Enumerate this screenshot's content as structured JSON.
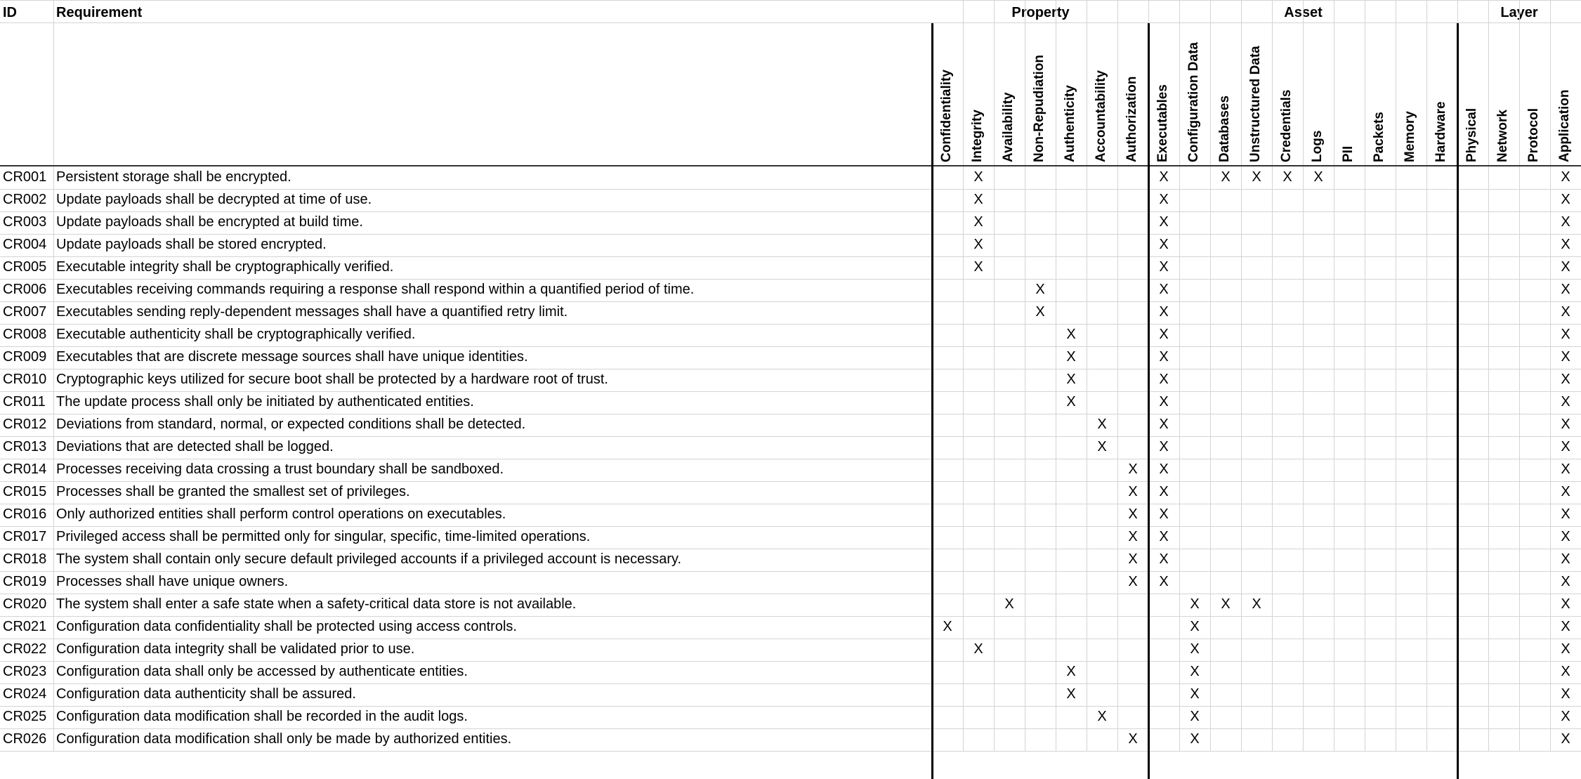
{
  "headers": {
    "id": "ID",
    "requirement": "Requirement"
  },
  "groups": [
    {
      "key": "property",
      "label": "Property",
      "columns": [
        "Confidentiality",
        "Integrity",
        "Availability",
        "Non-Repudiation",
        "Authenticity",
        "Accountability",
        "Authorization"
      ]
    },
    {
      "key": "asset",
      "label": "Asset",
      "columns": [
        "Executables",
        "Configuration Data",
        "Databases",
        "Unstructured Data",
        "Credentials",
        "Logs",
        "PII",
        "Packets",
        "Memory",
        "Hardware"
      ]
    },
    {
      "key": "layer",
      "label": "Layer",
      "columns": [
        "Physical",
        "Network",
        "Protocol",
        "Application"
      ]
    }
  ],
  "mark_symbol": "X",
  "rows": [
    {
      "id": "CR001",
      "text": "Persistent storage shall be encrypted.",
      "marks": [
        "Integrity",
        "Executables",
        "Databases",
        "Unstructured Data",
        "Credentials",
        "Logs",
        "Application"
      ]
    },
    {
      "id": "CR002",
      "text": "Update payloads shall be decrypted at time of use.",
      "marks": [
        "Integrity",
        "Executables",
        "Application"
      ]
    },
    {
      "id": "CR003",
      "text": "Update payloads shall be encrypted at build time.",
      "marks": [
        "Integrity",
        "Executables",
        "Application"
      ]
    },
    {
      "id": "CR004",
      "text": "Update payloads shall be stored encrypted.",
      "marks": [
        "Integrity",
        "Executables",
        "Application"
      ]
    },
    {
      "id": "CR005",
      "text": "Executable integrity shall be cryptographically verified.",
      "marks": [
        "Integrity",
        "Executables",
        "Application"
      ]
    },
    {
      "id": "CR006",
      "text": "Executables receiving commands requiring a response shall respond within a quantified period of time.",
      "marks": [
        "Non-Repudiation",
        "Executables",
        "Application"
      ]
    },
    {
      "id": "CR007",
      "text": "Executables sending reply-dependent messages shall have a quantified retry limit.",
      "marks": [
        "Non-Repudiation",
        "Executables",
        "Application"
      ]
    },
    {
      "id": "CR008",
      "text": "Executable authenticity shall be cryptographically verified.",
      "marks": [
        "Authenticity",
        "Executables",
        "Application"
      ]
    },
    {
      "id": "CR009",
      "text": "Executables that are discrete message sources shall have unique identities.",
      "marks": [
        "Authenticity",
        "Executables",
        "Application"
      ]
    },
    {
      "id": "CR010",
      "text": "Cryptographic keys utilized for secure boot shall be protected by a hardware root of trust.",
      "marks": [
        "Authenticity",
        "Executables",
        "Application"
      ]
    },
    {
      "id": "CR011",
      "text": "The update process shall only be initiated by authenticated entities.",
      "marks": [
        "Authenticity",
        "Executables",
        "Application"
      ]
    },
    {
      "id": "CR012",
      "text": "Deviations from standard, normal, or expected conditions shall be detected.",
      "marks": [
        "Accountability",
        "Executables",
        "Application"
      ]
    },
    {
      "id": "CR013",
      "text": "Deviations that are detected shall be logged.",
      "marks": [
        "Accountability",
        "Executables",
        "Application"
      ]
    },
    {
      "id": "CR014",
      "text": "Processes receiving data crossing a trust boundary shall be sandboxed.",
      "marks": [
        "Authorization",
        "Executables",
        "Application"
      ]
    },
    {
      "id": "CR015",
      "text": "Processes shall be granted the smallest set of privileges.",
      "marks": [
        "Authorization",
        "Executables",
        "Application"
      ]
    },
    {
      "id": "CR016",
      "text": "Only authorized entities shall perform control operations on executables.",
      "marks": [
        "Authorization",
        "Executables",
        "Application"
      ]
    },
    {
      "id": "CR017",
      "text": "Privileged access shall be permitted only for singular, specific, time-limited operations.",
      "marks": [
        "Authorization",
        "Executables",
        "Application"
      ]
    },
    {
      "id": "CR018",
      "text": "The system shall contain only secure default privileged accounts if a privileged account is necessary.",
      "marks": [
        "Authorization",
        "Executables",
        "Application"
      ]
    },
    {
      "id": "CR019",
      "text": "Processes shall have unique owners.",
      "marks": [
        "Authorization",
        "Executables",
        "Application"
      ]
    },
    {
      "id": "CR020",
      "text": "The system shall enter a safe state when a safety-critical data store is not available.",
      "marks": [
        "Availability",
        "Configuration Data",
        "Databases",
        "Unstructured Data",
        "Application"
      ]
    },
    {
      "id": "CR021",
      "text": "Configuration data confidentiality shall be protected using access controls.",
      "marks": [
        "Confidentiality",
        "Configuration Data",
        "Application"
      ]
    },
    {
      "id": "CR022",
      "text": "Configuration data integrity shall be validated prior to use.",
      "marks": [
        "Integrity",
        "Configuration Data",
        "Application"
      ]
    },
    {
      "id": "CR023",
      "text": "Configuration data shall only be accessed by authenticate entities.",
      "marks": [
        "Authenticity",
        "Configuration Data",
        "Application"
      ]
    },
    {
      "id": "CR024",
      "text": "Configuration data authenticity shall be assured.",
      "marks": [
        "Authenticity",
        "Configuration Data",
        "Application"
      ]
    },
    {
      "id": "CR025",
      "text": "Configuration data modification shall be recorded in the audit logs.",
      "marks": [
        "Accountability",
        "Configuration Data",
        "Application"
      ]
    },
    {
      "id": "CR026",
      "text": "Configuration data modification shall only be made by authorized entities.",
      "marks": [
        "Authorization",
        "Configuration Data",
        "Application"
      ]
    }
  ]
}
